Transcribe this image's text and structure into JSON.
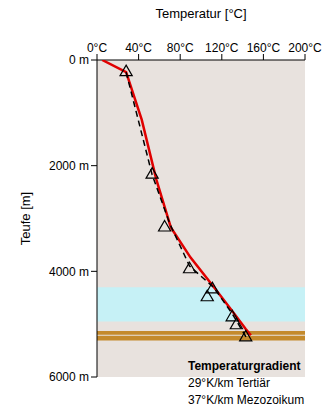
{
  "chart_data": {
    "type": "line",
    "x_label": "Temperatur [°C]",
    "y_label": "Teufe [m]",
    "xlim": [
      0,
      200
    ],
    "ylim": [
      6000,
      0
    ],
    "xticks": [
      {
        "value": 0,
        "label": "0°C"
      },
      {
        "value": 40,
        "label": "40°C"
      },
      {
        "value": 80,
        "label": "80°C"
      },
      {
        "value": 120,
        "label": "120°C"
      },
      {
        "value": 160,
        "label": "160°C"
      },
      {
        "value": 200,
        "label": "200°C"
      }
    ],
    "yticks": [
      {
        "value": 0,
        "label": "0 m"
      },
      {
        "value": 2000,
        "label": "2000 m"
      },
      {
        "value": 4000,
        "label": "4000 m"
      },
      {
        "value": 6000,
        "label": "6000 m"
      }
    ],
    "grid": false,
    "layers": [
      {
        "range": [
          0,
          6000
        ],
        "color": "#e8e2de"
      },
      {
        "range": [
          4300,
          4950
        ],
        "color": "#c6f1f6"
      },
      {
        "range": [
          5130,
          5200
        ],
        "color": "#c48a2c"
      },
      {
        "range": [
          5220,
          5310
        ],
        "color": "#c48a2c"
      }
    ],
    "series": [
      {
        "color": "#e00000",
        "line_style": "solid",
        "marker": "none",
        "x": [
          5,
          28,
          43,
          57,
          71,
          90,
          114,
          130,
          143,
          148
        ],
        "values": [
          0,
          230,
          1130,
          2260,
          3170,
          3740,
          4340,
          4750,
          5090,
          5210
        ]
      },
      {
        "color": "#000000",
        "line_style": "dashed",
        "marker": "none",
        "x": [
          28,
          53,
          70,
          89,
          112,
          130,
          145
        ],
        "values": [
          230,
          2170,
          3100,
          3900,
          4300,
          4800,
          5300
        ]
      },
      {
        "type": "scatter",
        "color": "#000000",
        "marker": "triangle",
        "x": [
          28,
          53,
          65,
          89,
          111,
          106,
          130,
          134,
          143
        ],
        "values": [
          230,
          2170,
          3170,
          3960,
          4340,
          4490,
          4870,
          5020,
          5250
        ]
      }
    ],
    "annotations": [
      "Temperaturgradient",
      "29°K/km Tertiär",
      "37°K/km Mezozoikum"
    ]
  }
}
